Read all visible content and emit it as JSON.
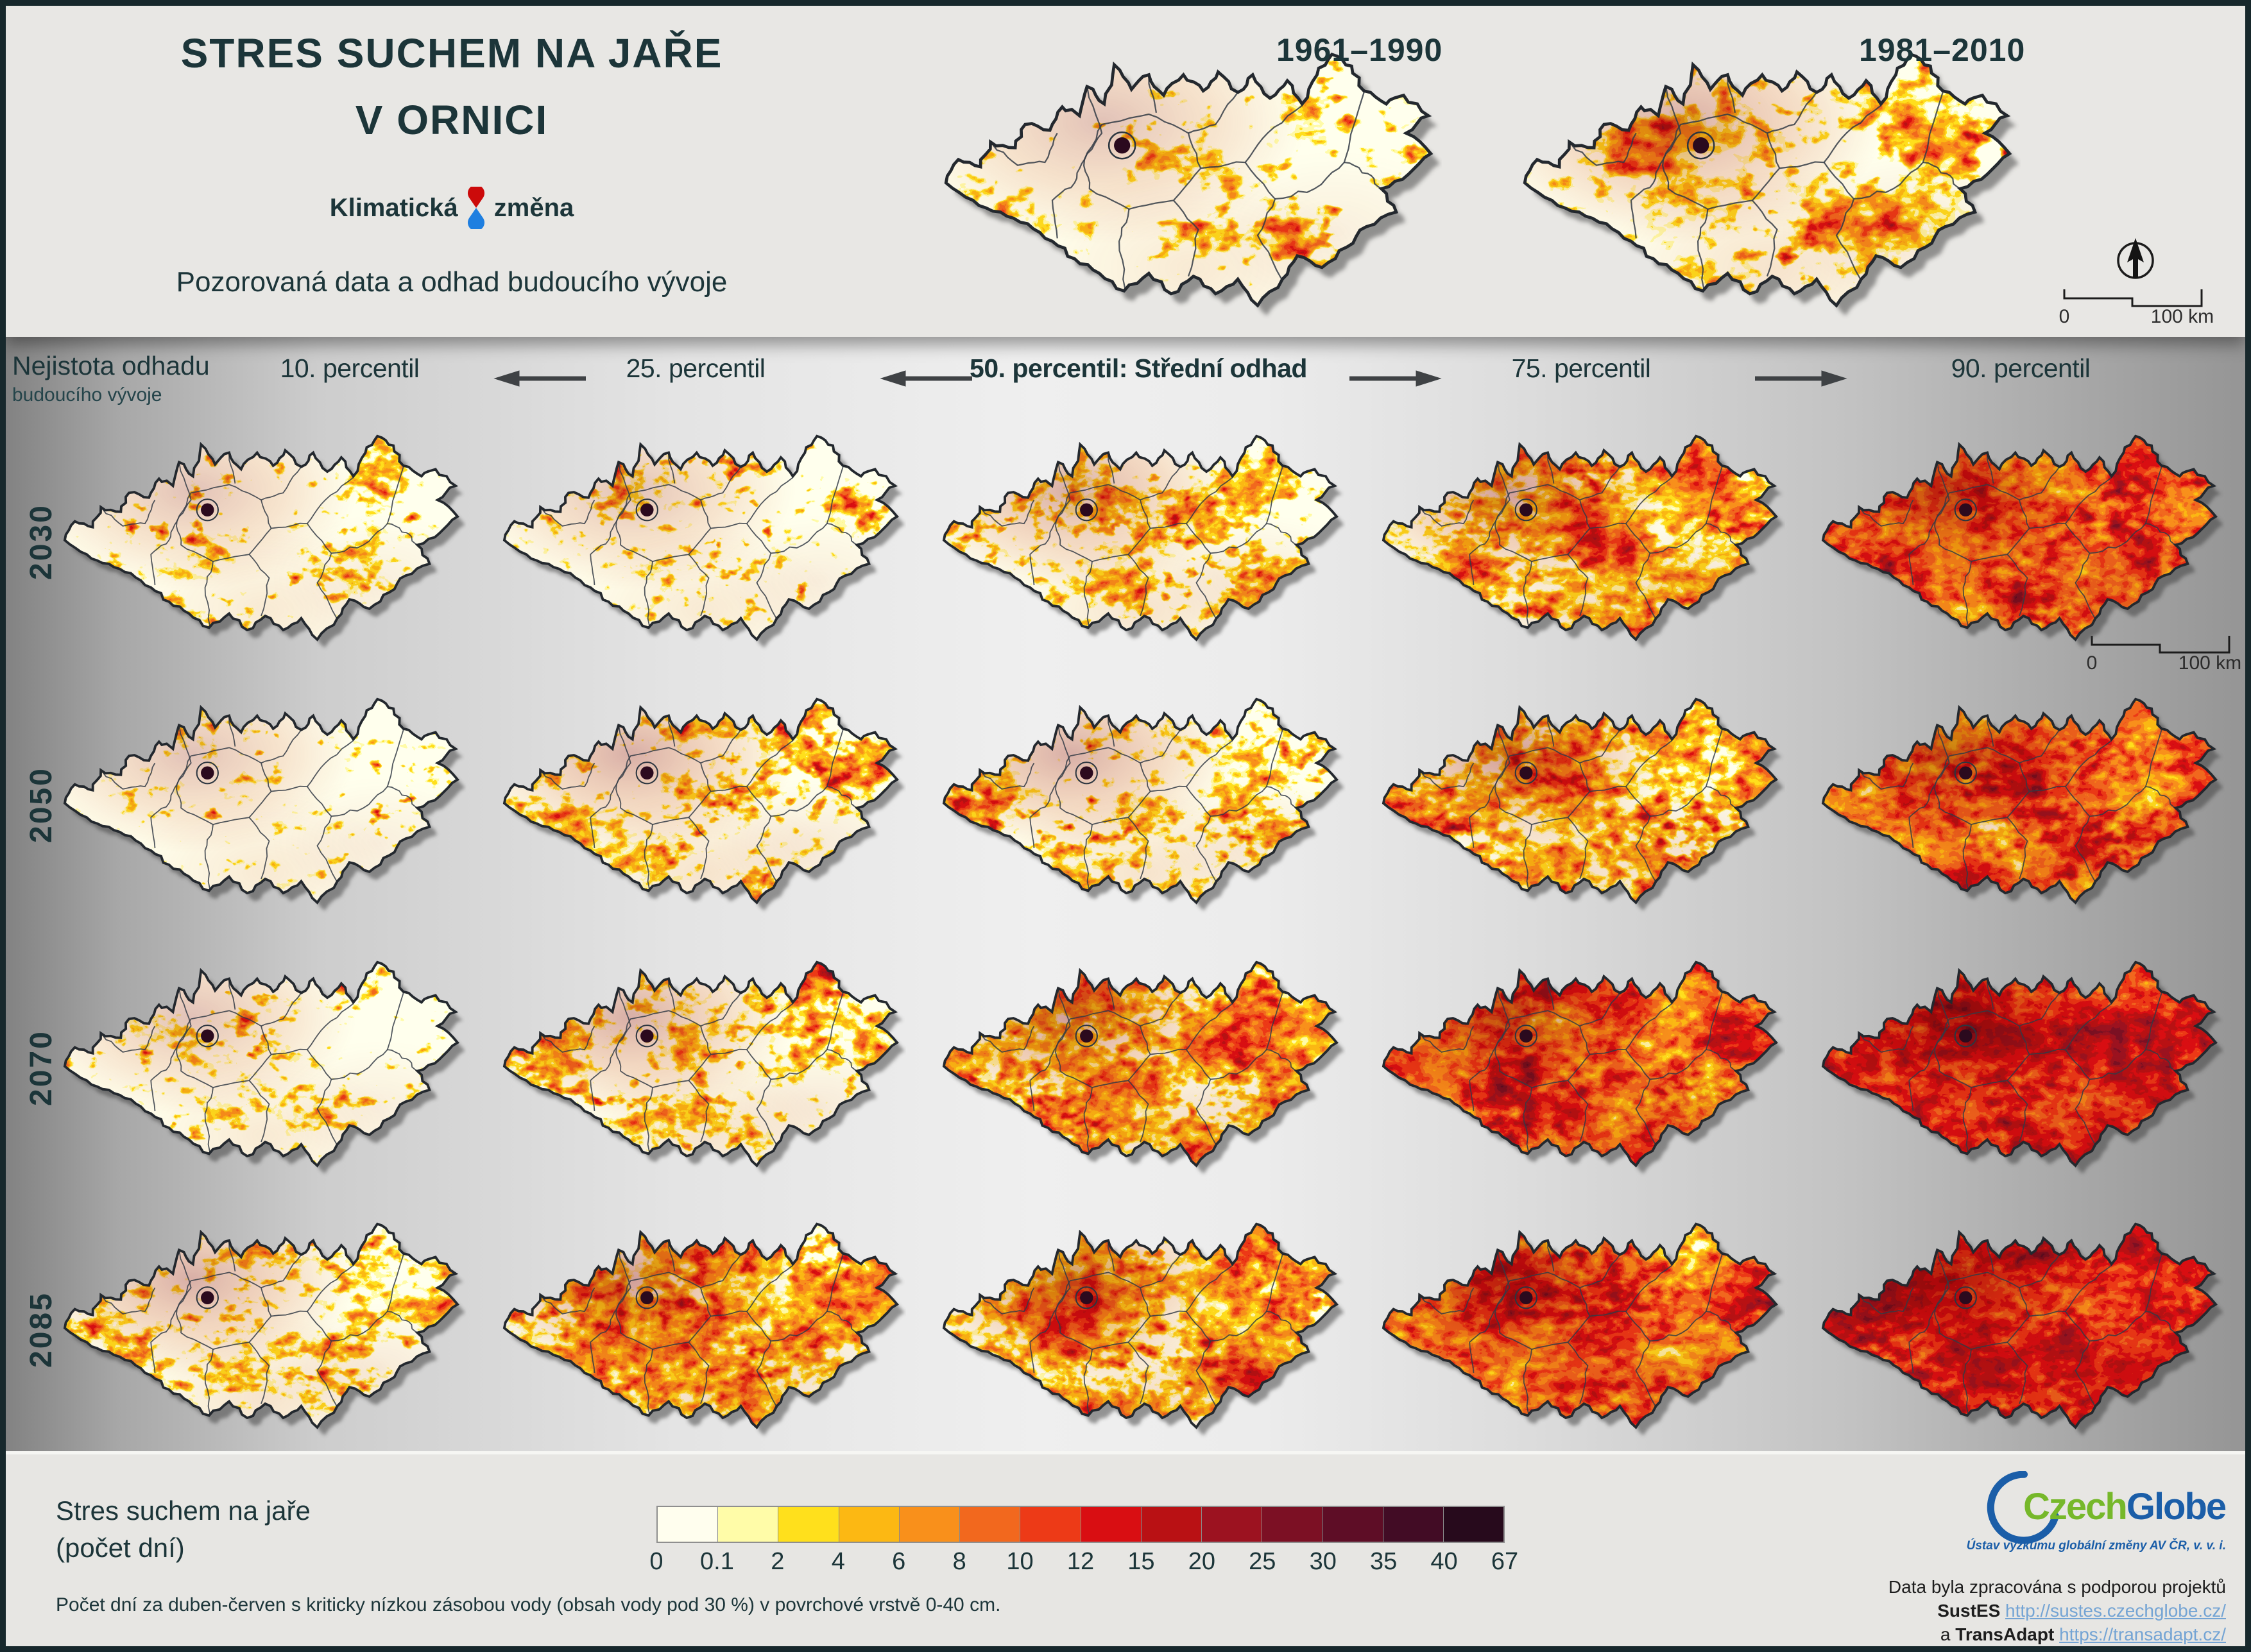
{
  "header": {
    "title_line1": "STRES SUCHEM NA JAŘE",
    "title_line2": "V ORNICI",
    "logo_word1": "Klimatická",
    "logo_word2": "změna",
    "subtitle": "Pozorovaná data a odhad budoucího vývoje"
  },
  "reference_maps": [
    {
      "label": "1961–1990",
      "severity": 1
    },
    {
      "label": "1981–2010",
      "severity": 2
    }
  ],
  "scalebar": {
    "zero": "0",
    "label": "100 km"
  },
  "matrix": {
    "uncertainty_line1": "Nejistota odhadu",
    "uncertainty_line2": "budoucího vývoje",
    "columns": [
      "10. percentil",
      "25. percentil",
      "50. percentil: Střední odhad",
      "75. percentil",
      "90. percentil"
    ],
    "rows": [
      "2030",
      "2050",
      "2070",
      "2085"
    ]
  },
  "map_cells": [
    {
      "row": "2030",
      "column": "10. percentil",
      "severity": 1
    },
    {
      "row": "2030",
      "column": "25. percentil",
      "severity": 1
    },
    {
      "row": "2030",
      "column": "50. percentil: Střední odhad",
      "severity": 2
    },
    {
      "row": "2030",
      "column": "75. percentil",
      "severity": 3
    },
    {
      "row": "2030",
      "column": "90. percentil",
      "severity": 4
    },
    {
      "row": "2050",
      "column": "10. percentil",
      "severity": 1
    },
    {
      "row": "2050",
      "column": "25. percentil",
      "severity": 2
    },
    {
      "row": "2050",
      "column": "50. percentil: Střední odhad",
      "severity": 2
    },
    {
      "row": "2050",
      "column": "75. percentil",
      "severity": 3
    },
    {
      "row": "2050",
      "column": "90. percentil",
      "severity": 4
    },
    {
      "row": "2070",
      "column": "10. percentil",
      "severity": 1
    },
    {
      "row": "2070",
      "column": "25. percentil",
      "severity": 2
    },
    {
      "row": "2070",
      "column": "50. percentil: Střední odhad",
      "severity": 3
    },
    {
      "row": "2070",
      "column": "75. percentil",
      "severity": 4
    },
    {
      "row": "2070",
      "column": "90. percentil",
      "severity": 5
    },
    {
      "row": "2085",
      "column": "10. percentil",
      "severity": 2
    },
    {
      "row": "2085",
      "column": "25. percentil",
      "severity": 3
    },
    {
      "row": "2085",
      "column": "50. percentil: Střední odhad",
      "severity": 3
    },
    {
      "row": "2085",
      "column": "75. percentil",
      "severity": 4
    },
    {
      "row": "2085",
      "column": "90. percentil",
      "severity": 5
    }
  ],
  "legend": {
    "title_line1": "Stres suchem na jaře",
    "title_line2": "(počet dní)",
    "colors": [
      "#fffeee",
      "#fffca8",
      "#ffe01c",
      "#fcb813",
      "#f9901b",
      "#f2681e",
      "#ed3a17",
      "#d90e12",
      "#b91114",
      "#9c1220",
      "#7c1024",
      "#5e0d26",
      "#420c25",
      "#270a1c"
    ],
    "ticks": [
      "0",
      "0.1",
      "2",
      "4",
      "6",
      "8",
      "10",
      "12",
      "15",
      "20",
      "25",
      "30",
      "35",
      "40",
      "67"
    ],
    "footnote": "Počet dní za duben-červen s kriticky nízkou zásobou vody (obsah vody pod 30 %) v povrchové vrstvě 0-40 cm."
  },
  "branding": {
    "word_green": "Czech",
    "word_blue": "Globe",
    "tagline": "Ústav výzkumu globální změny AV ČR, v. v. i."
  },
  "credits": {
    "line1": "Data byla zpracována s podporou projektů",
    "project1": "SustES",
    "link1": "http://sustes.czechglobe.cz/",
    "conj": "a",
    "project2": "TransAdapt",
    "link2": "https://transadapt.cz/"
  }
}
